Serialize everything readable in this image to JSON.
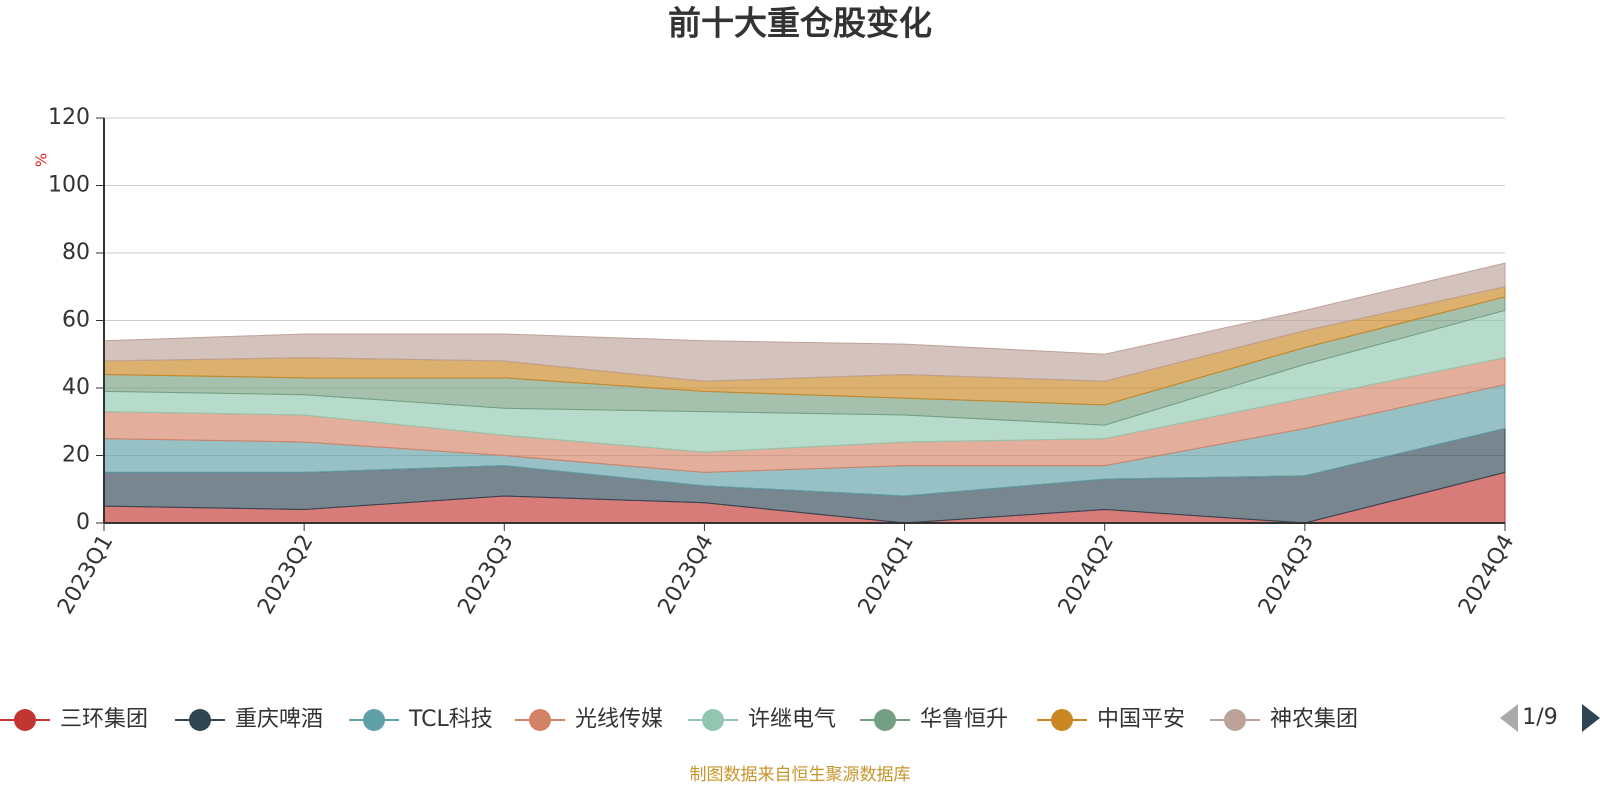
{
  "chart_data": {
    "type": "stacked-area",
    "title": "前十大重仓股变化",
    "y_label": "%",
    "categories": [
      "2023Q1",
      "2023Q2",
      "2023Q3",
      "2023Q4",
      "2024Q1",
      "2024Q2",
      "2024Q3",
      "2024Q4"
    ],
    "series": [
      {
        "name": "三环集团",
        "color": "#c23531",
        "values": [
          5,
          4,
          8,
          6,
          0,
          4,
          0,
          15
        ]
      },
      {
        "name": "重庆啤酒",
        "color": "#2f4554",
        "values": [
          10,
          11,
          9,
          5,
          8,
          9,
          14,
          13
        ]
      },
      {
        "name": "TCL科技",
        "color": "#61a0a8",
        "values": [
          10,
          9,
          3,
          4,
          9,
          4,
          14,
          13
        ]
      },
      {
        "name": "光线传媒",
        "color": "#d48265",
        "values": [
          8,
          8,
          6,
          6,
          7,
          8,
          9,
          8
        ]
      },
      {
        "name": "许继电气",
        "color": "#91c7ae",
        "values": [
          6,
          6,
          8,
          12,
          8,
          4,
          10,
          14
        ]
      },
      {
        "name": "华鲁恒升",
        "color": "#749f83",
        "values": [
          5,
          5,
          9,
          6,
          5,
          6,
          5,
          4
        ]
      },
      {
        "name": "中国平安",
        "color": "#ca8622",
        "values": [
          4,
          6,
          5,
          3,
          7,
          7,
          5,
          3
        ]
      },
      {
        "name": "神农集团",
        "color": "#bda29a",
        "values": [
          6,
          7,
          8,
          12,
          9,
          8,
          6,
          7
        ]
      }
    ],
    "ylim": [
      0,
      120
    ],
    "yticks": [
      0,
      20,
      40,
      60,
      80,
      100,
      120
    ],
    "grid": true,
    "legend_page": "1/9",
    "source": "制图数据来自恒生聚源数据库"
  }
}
